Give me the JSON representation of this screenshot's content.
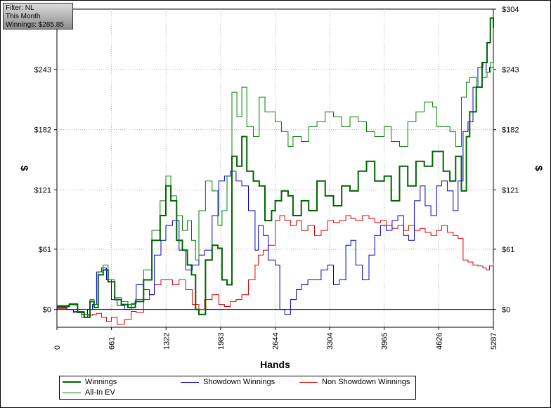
{
  "filter_box": {
    "line1": "Filter: NL",
    "line2": "This Month",
    "line3": "Winnings: $285.85"
  },
  "colors": {
    "winnings": "#006400",
    "allin_ev": "#008000",
    "showdown": "#0000cc",
    "non_showdown": "#dd0000",
    "grid": "#b0b0b0",
    "zero_line": "#000000"
  },
  "chart_data": {
    "type": "line",
    "title": "",
    "xlabel": "Hands",
    "ylabel_left": "$",
    "ylabel_right": "$",
    "xlim": [
      0,
      5287
    ],
    "ylim": [
      -18,
      304
    ],
    "x_ticks": [
      0,
      661,
      1322,
      1983,
      2644,
      3304,
      3965,
      4626,
      5287
    ],
    "y_ticks": [
      {
        "value": 0,
        "label": "$0"
      },
      {
        "value": 61,
        "label": "$61"
      },
      {
        "value": 121,
        "label": "$121"
      },
      {
        "value": 182,
        "label": "$182"
      },
      {
        "value": 243,
        "label": "$243"
      },
      {
        "value": 304,
        "label": "$304"
      }
    ],
    "grid": true,
    "legend_position": "bottom",
    "series": [
      {
        "name": "Winnings",
        "key": "winnings",
        "width": 2,
        "x": [
          0,
          150,
          250,
          330,
          400,
          450,
          500,
          560,
          620,
          700,
          780,
          860,
          950,
          1050,
          1150,
          1250,
          1320,
          1380,
          1450,
          1520,
          1580,
          1630,
          1680,
          1720,
          1800,
          1880,
          1950,
          2000,
          2060,
          2120,
          2180,
          2240,
          2300,
          2380,
          2450,
          2520,
          2600,
          2644,
          2720,
          2800,
          2860,
          2960,
          3050,
          3150,
          3250,
          3350,
          3450,
          3550,
          3650,
          3750,
          3850,
          3965,
          4050,
          4150,
          4250,
          4350,
          4450,
          4550,
          4600,
          4680,
          4760,
          4830,
          4900,
          4960,
          5000,
          5080,
          5150,
          5210,
          5250,
          5287
        ],
        "y": [
          3,
          5,
          -3,
          -8,
          8,
          2,
          35,
          40,
          28,
          10,
          5,
          2,
          8,
          30,
          70,
          95,
          125,
          110,
          70,
          60,
          45,
          35,
          0,
          -5,
          50,
          65,
          62,
          30,
          25,
          155,
          145,
          175,
          140,
          130,
          125,
          90,
          100,
          110,
          120,
          115,
          95,
          110,
          100,
          130,
          115,
          105,
          125,
          120,
          140,
          150,
          130,
          135,
          110,
          145,
          125,
          150,
          145,
          160,
          160,
          140,
          130,
          155,
          120,
          175,
          200,
          225,
          250,
          270,
          295,
          285
        ]
      },
      {
        "name": "All-In EV",
        "key": "allin_ev",
        "width": 1,
        "x": [
          0,
          150,
          250,
          330,
          400,
          450,
          500,
          560,
          620,
          700,
          780,
          860,
          950,
          1050,
          1150,
          1250,
          1320,
          1380,
          1450,
          1520,
          1580,
          1630,
          1680,
          1720,
          1800,
          1880,
          1950,
          2000,
          2060,
          2120,
          2180,
          2240,
          2300,
          2380,
          2450,
          2520,
          2600,
          2644,
          2720,
          2800,
          2860,
          2960,
          3050,
          3150,
          3250,
          3350,
          3450,
          3550,
          3650,
          3750,
          3850,
          3965,
          4050,
          4150,
          4250,
          4350,
          4450,
          4550,
          4600,
          4680,
          4760,
          4830,
          4900,
          4960,
          5000,
          5080,
          5150,
          5210,
          5250,
          5287
        ],
        "y": [
          4,
          6,
          -2,
          -5,
          10,
          5,
          38,
          45,
          30,
          12,
          8,
          5,
          10,
          40,
          80,
          110,
          135,
          115,
          95,
          80,
          90,
          70,
          50,
          100,
          130,
          120,
          85,
          100,
          135,
          220,
          195,
          225,
          185,
          175,
          215,
          200,
          200,
          190,
          180,
          165,
          175,
          170,
          185,
          190,
          200,
          195,
          185,
          195,
          190,
          180,
          175,
          185,
          170,
          165,
          190,
          200,
          210,
          205,
          185,
          185,
          180,
          165,
          215,
          230,
          235,
          225,
          235,
          240,
          250,
          240
        ]
      },
      {
        "name": "Showdown Winnings",
        "key": "showdown",
        "width": 1,
        "x": [
          0,
          120,
          200,
          300,
          370,
          430,
          480,
          540,
          600,
          660,
          730,
          820,
          900,
          960,
          1050,
          1120,
          1180,
          1260,
          1320,
          1400,
          1480,
          1560,
          1640,
          1720,
          1790,
          1880,
          1960,
          2030,
          2100,
          2170,
          2240,
          2320,
          2400,
          2440,
          2500,
          2560,
          2644,
          2700,
          2760,
          2830,
          2900,
          2960,
          3040,
          3120,
          3200,
          3280,
          3350,
          3420,
          3500,
          3560,
          3620,
          3700,
          3780,
          3850,
          3920,
          3990,
          4060,
          4130,
          4200,
          4260,
          4330,
          4400,
          4460,
          4530,
          4600,
          4660,
          4730,
          4800,
          4860,
          4920,
          4980,
          5040,
          5100,
          5160,
          5200,
          5240,
          5287
        ],
        "y": [
          2,
          0,
          -3,
          -5,
          0,
          5,
          38,
          42,
          30,
          10,
          4,
          0,
          6,
          25,
          20,
          15,
          55,
          70,
          85,
          90,
          60,
          40,
          45,
          55,
          60,
          95,
          130,
          135,
          140,
          130,
          125,
          100,
          60,
          85,
          75,
          50,
          45,
          0,
          -5,
          10,
          20,
          25,
          30,
          30,
          40,
          45,
          25,
          30,
          65,
          70,
          45,
          30,
          55,
          75,
          85,
          80,
          90,
          95,
          75,
          70,
          110,
          125,
          105,
          95,
          125,
          130,
          120,
          100,
          130,
          180,
          190,
          225,
          245,
          250,
          240,
          245,
          235
        ]
      },
      {
        "name": "Non Showdown Winnings",
        "key": "non_showdown",
        "width": 1,
        "x": [
          0,
          120,
          200,
          300,
          370,
          430,
          480,
          540,
          600,
          660,
          730,
          820,
          900,
          960,
          1050,
          1120,
          1180,
          1260,
          1320,
          1400,
          1480,
          1560,
          1640,
          1720,
          1790,
          1880,
          1960,
          2030,
          2100,
          2170,
          2240,
          2320,
          2400,
          2440,
          2500,
          2560,
          2644,
          2700,
          2760,
          2830,
          2900,
          2960,
          3040,
          3120,
          3200,
          3280,
          3350,
          3420,
          3500,
          3560,
          3620,
          3700,
          3780,
          3850,
          3920,
          3990,
          4060,
          4130,
          4200,
          4260,
          4330,
          4400,
          4460,
          4530,
          4600,
          4660,
          4730,
          4800,
          4860,
          4920,
          4980,
          5040,
          5100,
          5160,
          5200,
          5240,
          5287
        ],
        "y": [
          1,
          0,
          -2,
          -8,
          -6,
          -5,
          -4,
          -8,
          -12,
          -8,
          -15,
          -10,
          -2,
          -3,
          10,
          15,
          25,
          30,
          30,
          25,
          30,
          20,
          5,
          0,
          10,
          15,
          5,
          3,
          8,
          10,
          15,
          30,
          45,
          55,
          60,
          65,
          90,
          95,
          90,
          85,
          90,
          80,
          85,
          75,
          80,
          90,
          88,
          90,
          95,
          92,
          90,
          95,
          92,
          88,
          90,
          85,
          82,
          85,
          80,
          85,
          80,
          82,
          78,
          75,
          80,
          85,
          78,
          75,
          72,
          50,
          48,
          45,
          44,
          42,
          40,
          44,
          48
        ]
      }
    ]
  }
}
